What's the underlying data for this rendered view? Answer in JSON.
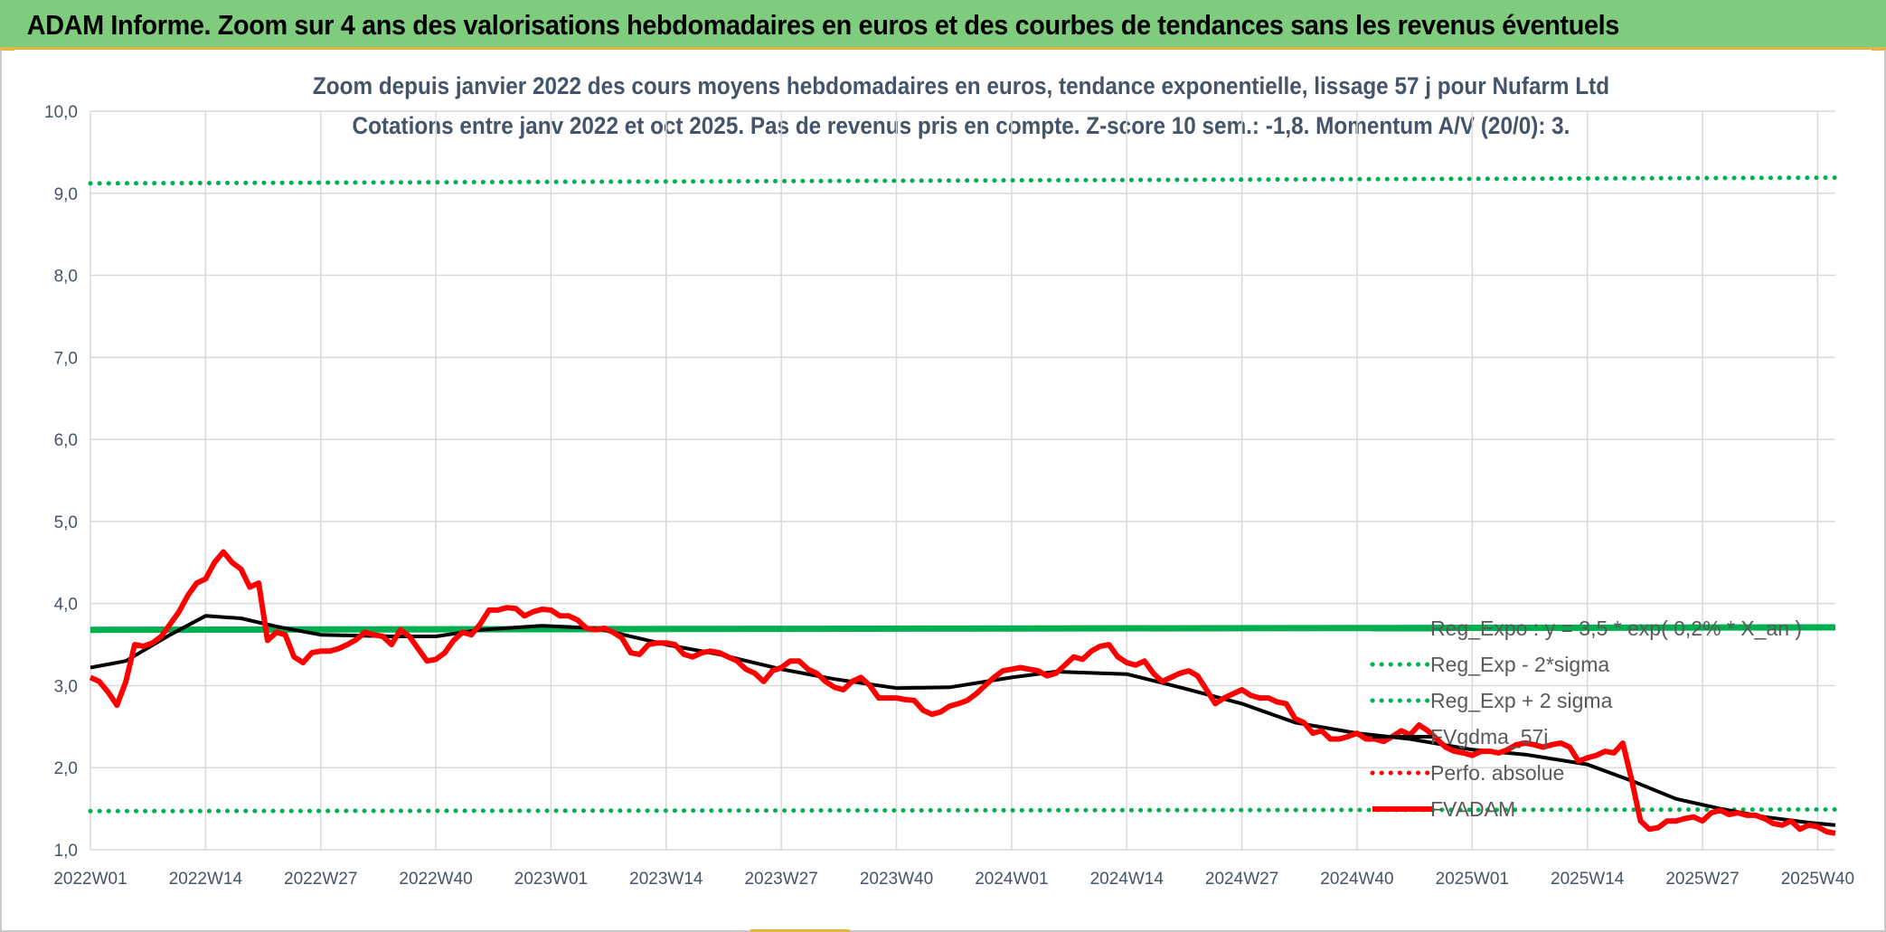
{
  "header": {
    "title": "ADAM Informe. Zoom sur 4 ans des valorisations hebdomadaires en euros et des courbes de tendances sans les revenus éventuels"
  },
  "chart_data": {
    "type": "line",
    "title": "Zoom depuis janvier 2022 des cours moyens hebdomadaires en euros, tendance exponentielle, lissage 57 j pour Nufarm Ltd",
    "subtitle": "Cotations entre janv 2022 et oct 2025. Pas de revenus pris en compte. Z-score 10 sem.: -1,8. Momentum A/V (20/0): 3.",
    "xlabel": "",
    "ylabel": "",
    "ylim": [
      1.0,
      10.0
    ],
    "yticks": [
      "1,0",
      "2,0",
      "3,0",
      "4,0",
      "5,0",
      "6,0",
      "7,0",
      "8,0",
      "9,0",
      "10,0"
    ],
    "ytick_values": [
      1,
      2,
      3,
      4,
      5,
      6,
      7,
      8,
      9,
      10
    ],
    "xlim": [
      1,
      198
    ],
    "xticks": [
      "2022W01",
      "2022W14",
      "2022W27",
      "2022W40",
      "2023W01",
      "2023W14",
      "2023W27",
      "2023W40",
      "2024W01",
      "2024W14",
      "2024W27",
      "2024W40",
      "2025W01",
      "2025W14",
      "2025W27",
      "2025W40"
    ],
    "xtick_weeks": [
      1,
      14,
      27,
      40,
      53,
      66,
      79,
      92,
      105,
      118,
      131,
      144,
      157,
      170,
      183,
      196
    ],
    "grid": true,
    "legend_position": "right",
    "series": [
      {
        "name": "Reg_Expo : y = 3,5 * exp( 0,2% * X_an )",
        "color": "#00b050",
        "style": "solid-thick",
        "x": [
          1,
          198
        ],
        "y": [
          3.68,
          3.71
        ]
      },
      {
        "name": "Reg_Exp - 2*sigma",
        "color": "#00b050",
        "style": "dotted",
        "x": [
          1,
          198
        ],
        "y": [
          1.47,
          1.49
        ]
      },
      {
        "name": "Reg_Exp + 2 sigma",
        "color": "#00b050",
        "style": "dotted",
        "x": [
          1,
          198
        ],
        "y": [
          9.12,
          9.19
        ]
      },
      {
        "name": "FVgdma_57j",
        "color": "#000000",
        "style": "solid",
        "x": [
          1,
          5,
          10,
          14,
          18,
          22,
          27,
          35,
          40,
          45,
          52,
          58,
          66,
          72,
          79,
          85,
          92,
          98,
          105,
          110,
          118,
          124,
          131,
          137,
          144,
          150,
          157,
          163,
          170,
          175,
          180,
          185,
          190,
          195,
          198
        ],
        "y": [
          3.22,
          3.3,
          3.62,
          3.85,
          3.82,
          3.72,
          3.62,
          3.6,
          3.6,
          3.68,
          3.73,
          3.7,
          3.5,
          3.38,
          3.2,
          3.08,
          2.97,
          2.98,
          3.1,
          3.17,
          3.14,
          2.98,
          2.78,
          2.55,
          2.42,
          2.35,
          2.22,
          2.16,
          2.04,
          1.84,
          1.62,
          1.5,
          1.4,
          1.33,
          1.3
        ]
      },
      {
        "name": "Perfo. absolue",
        "color": "#ff0000",
        "style": "dotted",
        "x": [],
        "y": []
      },
      {
        "name": "FVADAM",
        "color": "#ff0000",
        "style": "solid-thick",
        "x": [
          1,
          2,
          3,
          4,
          5,
          6,
          7,
          8,
          9,
          10,
          11,
          12,
          13,
          14,
          15,
          16,
          17,
          18,
          19,
          20,
          21,
          22,
          23,
          24,
          25,
          26,
          27,
          28,
          29,
          30,
          31,
          32,
          33,
          34,
          35,
          36,
          37,
          38,
          39,
          40,
          41,
          42,
          43,
          44,
          45,
          46,
          47,
          48,
          49,
          50,
          51,
          52,
          53,
          54,
          55,
          56,
          57,
          58,
          59,
          60,
          61,
          62,
          63,
          64,
          65,
          66,
          67,
          68,
          69,
          70,
          71,
          72,
          73,
          74,
          75,
          76,
          77,
          78,
          79,
          80,
          81,
          82,
          83,
          84,
          85,
          86,
          87,
          88,
          89,
          90,
          91,
          92,
          93,
          94,
          95,
          96,
          97,
          98,
          99,
          100,
          101,
          102,
          103,
          104,
          105,
          106,
          107,
          108,
          109,
          110,
          111,
          112,
          113,
          114,
          115,
          116,
          117,
          118,
          119,
          120,
          121,
          122,
          123,
          124,
          125,
          126,
          127,
          128,
          129,
          130,
          131,
          132,
          133,
          134,
          135,
          136,
          137,
          138,
          139,
          140,
          141,
          142,
          143,
          144,
          145,
          146,
          147,
          148,
          149,
          150,
          151,
          152,
          153,
          154,
          155,
          156,
          157,
          158,
          159,
          160,
          161,
          162,
          163,
          164,
          165,
          166,
          167,
          168,
          169,
          170,
          171,
          172,
          173,
          174,
          175,
          176,
          177,
          178,
          179,
          180,
          181,
          182,
          183,
          184,
          185,
          186,
          187,
          188,
          189,
          190,
          191,
          192,
          193,
          194,
          195,
          196,
          197,
          198
        ],
        "y": [
          3.1,
          3.05,
          2.92,
          2.76,
          3.05,
          3.5,
          3.48,
          3.52,
          3.6,
          3.75,
          3.9,
          4.1,
          4.25,
          4.3,
          4.5,
          4.63,
          4.5,
          4.42,
          4.2,
          4.25,
          3.55,
          3.65,
          3.62,
          3.35,
          3.28,
          3.4,
          3.42,
          3.42,
          3.45,
          3.5,
          3.56,
          3.65,
          3.62,
          3.6,
          3.5,
          3.68,
          3.6,
          3.45,
          3.3,
          3.32,
          3.4,
          3.55,
          3.65,
          3.62,
          3.75,
          3.92,
          3.92,
          3.95,
          3.94,
          3.85,
          3.9,
          3.93,
          3.92,
          3.85,
          3.85,
          3.8,
          3.7,
          3.68,
          3.7,
          3.65,
          3.58,
          3.4,
          3.38,
          3.5,
          3.52,
          3.52,
          3.5,
          3.38,
          3.35,
          3.4,
          3.42,
          3.4,
          3.35,
          3.3,
          3.2,
          3.15,
          3.05,
          3.18,
          3.22,
          3.3,
          3.3,
          3.2,
          3.15,
          3.05,
          2.98,
          2.95,
          3.05,
          3.1,
          3.0,
          2.85,
          2.85,
          2.85,
          2.83,
          2.82,
          2.7,
          2.65,
          2.68,
          2.75,
          2.78,
          2.82,
          2.9,
          3.0,
          3.1,
          3.18,
          3.2,
          3.22,
          3.2,
          3.18,
          3.12,
          3.15,
          3.25,
          3.35,
          3.32,
          3.42,
          3.48,
          3.5,
          3.35,
          3.28,
          3.25,
          3.3,
          3.15,
          3.05,
          3.1,
          3.15,
          3.18,
          3.12,
          2.95,
          2.78,
          2.85,
          2.9,
          2.95,
          2.88,
          2.85,
          2.85,
          2.8,
          2.78,
          2.6,
          2.55,
          2.42,
          2.45,
          2.35,
          2.35,
          2.38,
          2.42,
          2.35,
          2.35,
          2.32,
          2.38,
          2.45,
          2.4,
          2.52,
          2.45,
          2.35,
          2.25,
          2.2,
          2.18,
          2.15,
          2.2,
          2.2,
          2.18,
          2.22,
          2.28,
          2.3,
          2.28,
          2.25,
          2.28,
          2.3,
          2.25,
          2.08,
          2.12,
          2.15,
          2.2,
          2.18,
          2.3,
          1.85,
          1.35,
          1.25,
          1.27,
          1.35,
          1.35,
          1.38,
          1.4,
          1.35,
          1.45,
          1.48,
          1.43,
          1.45,
          1.42,
          1.42,
          1.38,
          1.32,
          1.3,
          1.35,
          1.25,
          1.3,
          1.28,
          1.22,
          1.2
        ]
      }
    ]
  }
}
